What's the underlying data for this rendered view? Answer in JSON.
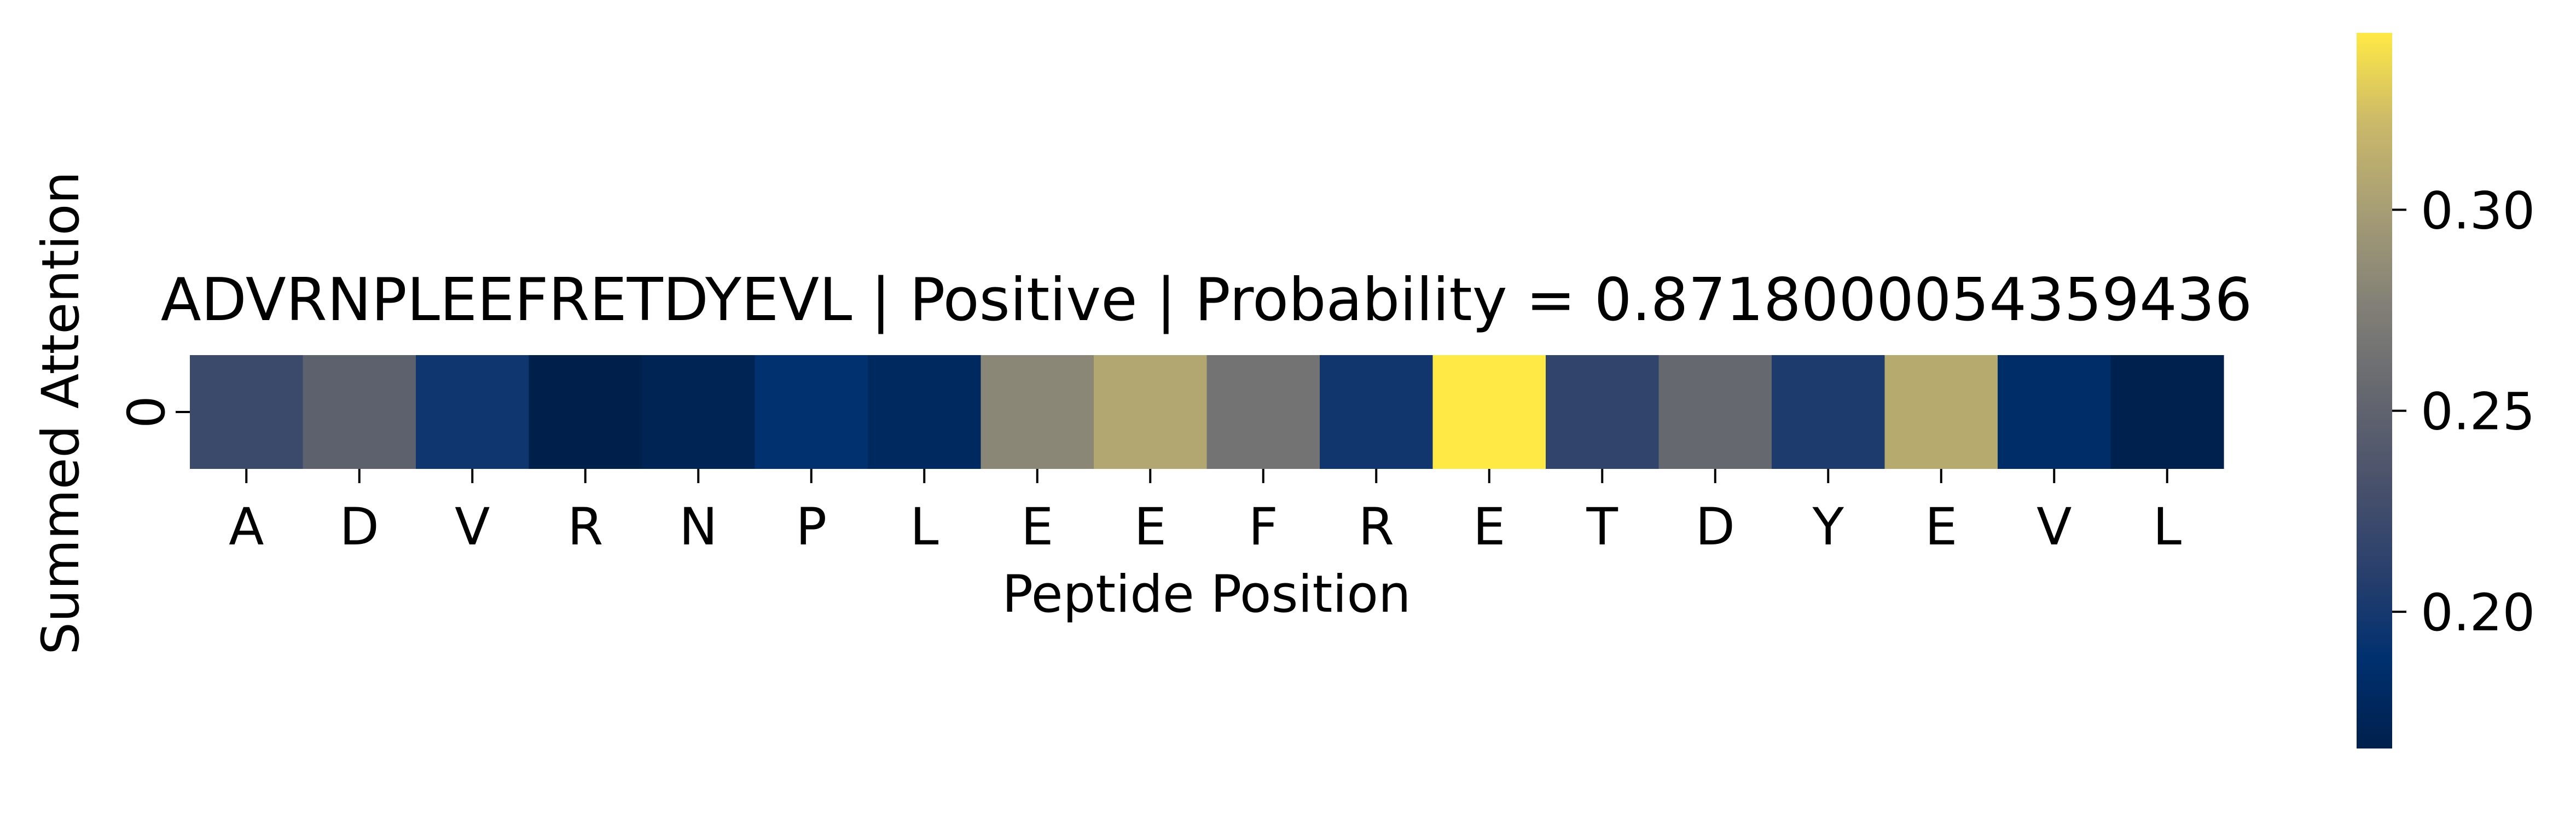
{
  "chart_data": {
    "type": "heatmap",
    "title": "ADVRNPLEEFRETDYEVL | Positive | Probability = 0.8718000054359436",
    "xlabel": "Peptide Position",
    "ylabel": "Summed Attention",
    "x_tick_labels": [
      "A",
      "D",
      "V",
      "R",
      "N",
      "P",
      "L",
      "E",
      "E",
      "F",
      "R",
      "E",
      "T",
      "D",
      "Y",
      "E",
      "V",
      "L"
    ],
    "y_tick_labels": [
      "0"
    ],
    "values": [
      [
        0.222,
        0.248,
        0.196,
        0.166,
        0.171,
        0.189,
        0.178,
        0.282,
        0.307,
        0.265,
        0.197,
        0.344,
        0.215,
        0.255,
        0.204,
        0.31,
        0.184,
        0.167
      ]
    ],
    "colormap": "cividis",
    "colorbar": {
      "vmin": 0.166,
      "vmax": 0.344,
      "ticks": [
        0.2,
        0.25,
        0.3
      ],
      "tick_labels": [
        "0.20",
        "0.25",
        "0.30"
      ]
    },
    "grid": false,
    "legend": "none"
  }
}
